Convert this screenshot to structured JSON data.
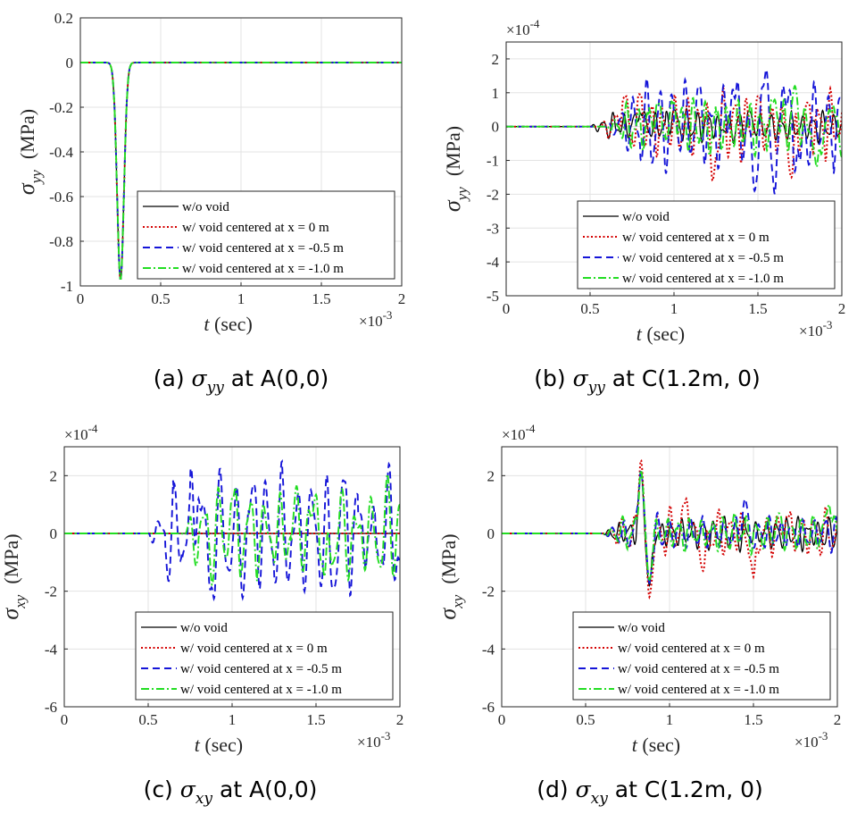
{
  "colors": {
    "wo_void": "#000000",
    "void_0": "#d40000",
    "void_m05": "#1515d8",
    "void_m10": "#22dd22",
    "grid": "#e3e3e3",
    "axis": "#262626"
  },
  "chart_data": [
    {
      "id": "a",
      "type": "line",
      "title": "",
      "xlabel": {
        "var": "t",
        "unit": " (sec)"
      },
      "ylabel": {
        "sym": "σ",
        "sub": "yy",
        "unit": "(MPa)"
      },
      "x_exponent": {
        "base": "×10",
        "exp": "-3"
      },
      "y_exponent": null,
      "xlim": [
        0,
        2
      ],
      "ylim": [
        -1,
        0.2
      ],
      "xticks": [
        "0",
        "0.5",
        "1",
        "1.5",
        "2"
      ],
      "yticks": [
        "-1",
        "-0.8",
        "-0.6",
        "-0.4",
        "-0.2",
        "0",
        "0.2"
      ],
      "legend": [
        "w/o void",
        "w/ void centered at x = 0 m",
        "w/ void centered at x = -0.5 m",
        "w/ void centered at x = -1.0 m"
      ],
      "legend_position": "bottom-right",
      "series": [
        {
          "name": "w/o void",
          "style": "solid",
          "kind": "pulse",
          "peak": -0.97,
          "center": 0.25,
          "width": 0.03
        },
        {
          "name": "w/ void centered at x = 0 m",
          "style": "dotted",
          "kind": "pulse",
          "peak": -0.97,
          "center": 0.25,
          "width": 0.03
        },
        {
          "name": "w/ void centered at x = -0.5 m",
          "style": "dashed",
          "kind": "pulse",
          "peak": -0.97,
          "center": 0.25,
          "width": 0.03
        },
        {
          "name": "w/ void centered at x = -1.0 m",
          "style": "dashdot",
          "kind": "pulse",
          "peak": -0.97,
          "center": 0.25,
          "width": 0.03
        }
      ],
      "caption": {
        "prefix": "(a) ",
        "sym": "σ",
        "sub": "yy",
        "suffix": " at A(0,0)"
      }
    },
    {
      "id": "b",
      "type": "line",
      "title": "",
      "xlabel": {
        "var": "t",
        "unit": " (sec)"
      },
      "ylabel": {
        "sym": "σ",
        "sub": "yy",
        "unit": "(MPa)"
      },
      "x_exponent": {
        "base": "×10",
        "exp": "-3"
      },
      "y_exponent": {
        "base": "×10",
        "exp": "-4"
      },
      "xlim": [
        0,
        2
      ],
      "ylim": [
        -5,
        2.5
      ],
      "xticks": [
        "0",
        "0.5",
        "1",
        "1.5",
        "2"
      ],
      "yticks": [
        "-5",
        "-4",
        "-3",
        "-2",
        "-1",
        "0",
        "1",
        "2"
      ],
      "legend": [
        "w/o void",
        "w/ void centered at x = 0 m",
        "w/ void centered at x = -0.5 m",
        "w/ void centered at x = -1.0 m"
      ],
      "legend_position": "bottom-right",
      "series": [
        {
          "name": "w/o void",
          "style": "solid",
          "kind": "osc",
          "start": 0.5,
          "amp": 0.35,
          "freq": 16,
          "phase": 0.2,
          "points": [
            [
              0.8,
              0.4
            ],
            [
              1.0,
              0.5
            ],
            [
              1.2,
              0.3
            ],
            [
              1.45,
              0.45
            ]
          ]
        },
        {
          "name": "w/ void centered at x = 0 m",
          "style": "dotted",
          "kind": "osc",
          "start": 0.55,
          "amp": 0.75,
          "freq": 14,
          "phase": 1.1,
          "points": [
            [
              0.7,
              0.85
            ],
            [
              0.8,
              0.95
            ],
            [
              1.2,
              0.85
            ],
            [
              1.23,
              -1.6
            ],
            [
              1.5,
              0.9
            ],
            [
              1.7,
              -1.5
            ],
            [
              1.8,
              0.7
            ]
          ]
        },
        {
          "name": "w/ void centered at x = -0.5 m",
          "style": "dashed",
          "kind": "osc",
          "start": 0.6,
          "amp": 0.9,
          "freq": 13,
          "phase": 2.3,
          "points": [
            [
              1.15,
              1.2
            ],
            [
              1.35,
              1.1
            ],
            [
              1.48,
              -1.9
            ],
            [
              1.55,
              1.7
            ],
            [
              1.6,
              -2.0
            ],
            [
              1.65,
              1.2
            ],
            [
              1.75,
              -1.0
            ]
          ]
        },
        {
          "name": "w/ void centered at x = -1.0 m",
          "style": "dashdot",
          "kind": "osc",
          "start": 0.6,
          "amp": 0.65,
          "freq": 15,
          "phase": 3.1,
          "points": [
            [
              0.9,
              0.7
            ],
            [
              1.0,
              0.7
            ],
            [
              1.6,
              0.8
            ],
            [
              1.72,
              1.2
            ],
            [
              1.85,
              -1.2
            ],
            [
              1.95,
              0.6
            ],
            [
              2.0,
              -0.9
            ]
          ]
        }
      ],
      "caption": {
        "prefix": "(b) ",
        "sym": "σ",
        "sub": "yy",
        "suffix": " at C(1.2m, 0)"
      }
    },
    {
      "id": "c",
      "type": "line",
      "title": "",
      "xlabel": {
        "var": "t",
        "unit": " (sec)"
      },
      "ylabel": {
        "sym": "σ",
        "sub": "xy",
        "unit": "(MPa)"
      },
      "x_exponent": {
        "base": "×10",
        "exp": "-3"
      },
      "y_exponent": {
        "base": "×10",
        "exp": "-4"
      },
      "xlim": [
        0,
        2
      ],
      "ylim": [
        -6,
        3
      ],
      "xticks": [
        "0",
        "0.5",
        "1",
        "1.5",
        "2"
      ],
      "yticks": [
        "-6",
        "-4",
        "-2",
        "0",
        "2"
      ],
      "legend": [
        "w/o void",
        "w/ void centered at x = 0 m",
        "w/ void centered at x = -0.5 m",
        "w/ void centered at x = -1.0 m"
      ],
      "legend_position": "bottom-right",
      "series": [
        {
          "name": "w/o void",
          "style": "solid",
          "kind": "flat"
        },
        {
          "name": "w/ void centered at x = 0 m",
          "style": "dotted",
          "kind": "flat"
        },
        {
          "name": "w/ void centered at x = -0.5 m",
          "style": "dashed",
          "kind": "osc",
          "start": 0.5,
          "amp": 1.75,
          "freq": 11,
          "phase": 0.0,
          "points": [
            [
              0.8,
              1.2
            ],
            [
              0.87,
              -1.95
            ],
            [
              1.13,
              1.7
            ],
            [
              1.6,
              -1.9
            ],
            [
              1.67,
              1.8
            ],
            [
              1.82,
              0.0
            ],
            [
              2.0,
              -1.0
            ]
          ]
        },
        {
          "name": "w/ void centered at x = -1.0 m",
          "style": "dashdot",
          "kind": "osc",
          "start": 0.7,
          "amp": 1.3,
          "freq": 11,
          "phase": 0.6,
          "points": [
            [
              1.0,
              1.2
            ],
            [
              1.5,
              1.35
            ],
            [
              1.55,
              -1.5
            ],
            [
              1.75,
              0.2
            ],
            [
              2.0,
              1.0
            ]
          ]
        }
      ],
      "caption": {
        "prefix": "(c) ",
        "sym": "σ",
        "sub": "xy",
        "suffix": " at A(0,0)"
      }
    },
    {
      "id": "d",
      "type": "line",
      "title": "",
      "xlabel": {
        "var": "t",
        "unit": " (sec)"
      },
      "ylabel": {
        "sym": "σ",
        "sub": "xy",
        "unit": "(MPa)"
      },
      "x_exponent": {
        "base": "×10",
        "exp": "-3"
      },
      "y_exponent": {
        "base": "×10",
        "exp": "-4"
      },
      "xlim": [
        0,
        2
      ],
      "ylim": [
        -6,
        3
      ],
      "xticks": [
        "0",
        "0.5",
        "1",
        "1.5",
        "2"
      ],
      "yticks": [
        "-6",
        "-4",
        "-2",
        "0",
        "2"
      ],
      "legend": [
        "w/o void",
        "w/ void centered at x = 0 m",
        "w/ void centered at x = -0.5 m",
        "w/ void centered at x = -1.0 m"
      ],
      "legend_position": "bottom-right",
      "series": [
        {
          "name": "w/o void",
          "style": "solid",
          "kind": "burst",
          "start": 0.6,
          "amp": 0.4,
          "freq": 16,
          "phase": 0.3,
          "points": [
            [
              0.83,
              2.1
            ],
            [
              0.88,
              -1.8
            ]
          ]
        },
        {
          "name": "w/ void centered at x = 0 m",
          "style": "dotted",
          "kind": "burst",
          "start": 0.62,
          "amp": 0.6,
          "freq": 14,
          "phase": 1.2,
          "points": [
            [
              0.83,
              2.55
            ],
            [
              0.88,
              -2.2
            ],
            [
              1.1,
              1.2
            ],
            [
              1.2,
              -1.3
            ],
            [
              1.5,
              -1.5
            ],
            [
              1.7,
              0.6
            ]
          ]
        },
        {
          "name": "w/ void centered at x = -0.5 m",
          "style": "dashed",
          "kind": "burst",
          "start": 0.6,
          "amp": 0.45,
          "freq": 15,
          "phase": 2.0,
          "points": [
            [
              0.83,
              2.2
            ],
            [
              0.88,
              -1.7
            ],
            [
              1.45,
              1.2
            ],
            [
              1.5,
              -0.5
            ]
          ]
        },
        {
          "name": "w/ void centered at x = -1.0 m",
          "style": "dashdot",
          "kind": "burst",
          "start": 0.6,
          "amp": 0.45,
          "freq": 15,
          "phase": 2.8,
          "points": [
            [
              0.83,
              2.2
            ],
            [
              0.88,
              -1.6
            ],
            [
              1.65,
              0.7
            ],
            [
              1.95,
              1.0
            ]
          ]
        }
      ],
      "caption": {
        "prefix": "(d) ",
        "sym": "σ",
        "sub": "xy",
        "suffix": " at C(1.2m, 0)"
      }
    }
  ]
}
